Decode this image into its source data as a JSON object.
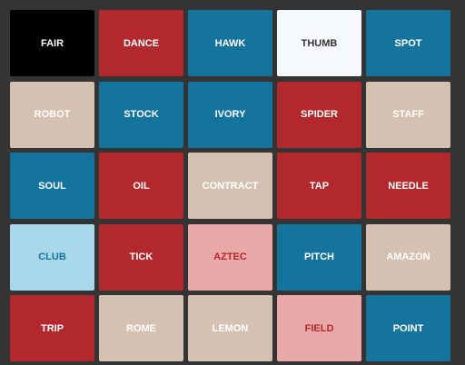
{
  "board": {
    "cards": [
      {
        "word": "FAIR",
        "color": "#000000",
        "text_color": "#ffffff"
      },
      {
        "word": "DANCE",
        "color": "#b3282c",
        "text_color": "#ffffff"
      },
      {
        "word": "HAWK",
        "color": "#14749e",
        "text_color": "#ffffff"
      },
      {
        "word": "THUMB",
        "color": "#f6f9fc",
        "text_color": "#333333"
      },
      {
        "word": "SPOT",
        "color": "#14749e",
        "text_color": "#ffffff"
      },
      {
        "word": "ROBOT",
        "color": "#d5c1b1",
        "text_color": "#ffffff"
      },
      {
        "word": "STOCK",
        "color": "#14749e",
        "text_color": "#ffffff"
      },
      {
        "word": "IVORY",
        "color": "#14749e",
        "text_color": "#ffffff"
      },
      {
        "word": "SPIDER",
        "color": "#b3282c",
        "text_color": "#ffffff"
      },
      {
        "word": "STAFF",
        "color": "#d5c1b1",
        "text_color": "#ffffff"
      },
      {
        "word": "SOUL",
        "color": "#14749e",
        "text_color": "#ffffff"
      },
      {
        "word": "OIL",
        "color": "#b3282c",
        "text_color": "#ffffff"
      },
      {
        "word": "CONTRACT",
        "color": "#d5c1b1",
        "text_color": "#ffffff"
      },
      {
        "word": "TAP",
        "color": "#b3282c",
        "text_color": "#ffffff"
      },
      {
        "word": "NEEDLE",
        "color": "#b3282c",
        "text_color": "#ffffff"
      },
      {
        "word": "CLUB",
        "color": "#a9d8ec",
        "text_color": "#14749e"
      },
      {
        "word": "TICK",
        "color": "#b3282c",
        "text_color": "#ffffff"
      },
      {
        "word": "AZTEC",
        "color": "#eaa9a9",
        "text_color": "#b3282c"
      },
      {
        "word": "PITCH",
        "color": "#14749e",
        "text_color": "#ffffff"
      },
      {
        "word": "AMAZON",
        "color": "#d5c1b1",
        "text_color": "#ffffff"
      },
      {
        "word": "TRIP",
        "color": "#b3282c",
        "text_color": "#ffffff"
      },
      {
        "word": "ROME",
        "color": "#d5c1b1",
        "text_color": "#ffffff"
      },
      {
        "word": "LEMON",
        "color": "#d5c1b1",
        "text_color": "#ffffff"
      },
      {
        "word": "FIELD",
        "color": "#eaa9a9",
        "text_color": "#b3282c"
      },
      {
        "word": "POINT",
        "color": "#14749e",
        "text_color": "#ffffff"
      }
    ]
  }
}
